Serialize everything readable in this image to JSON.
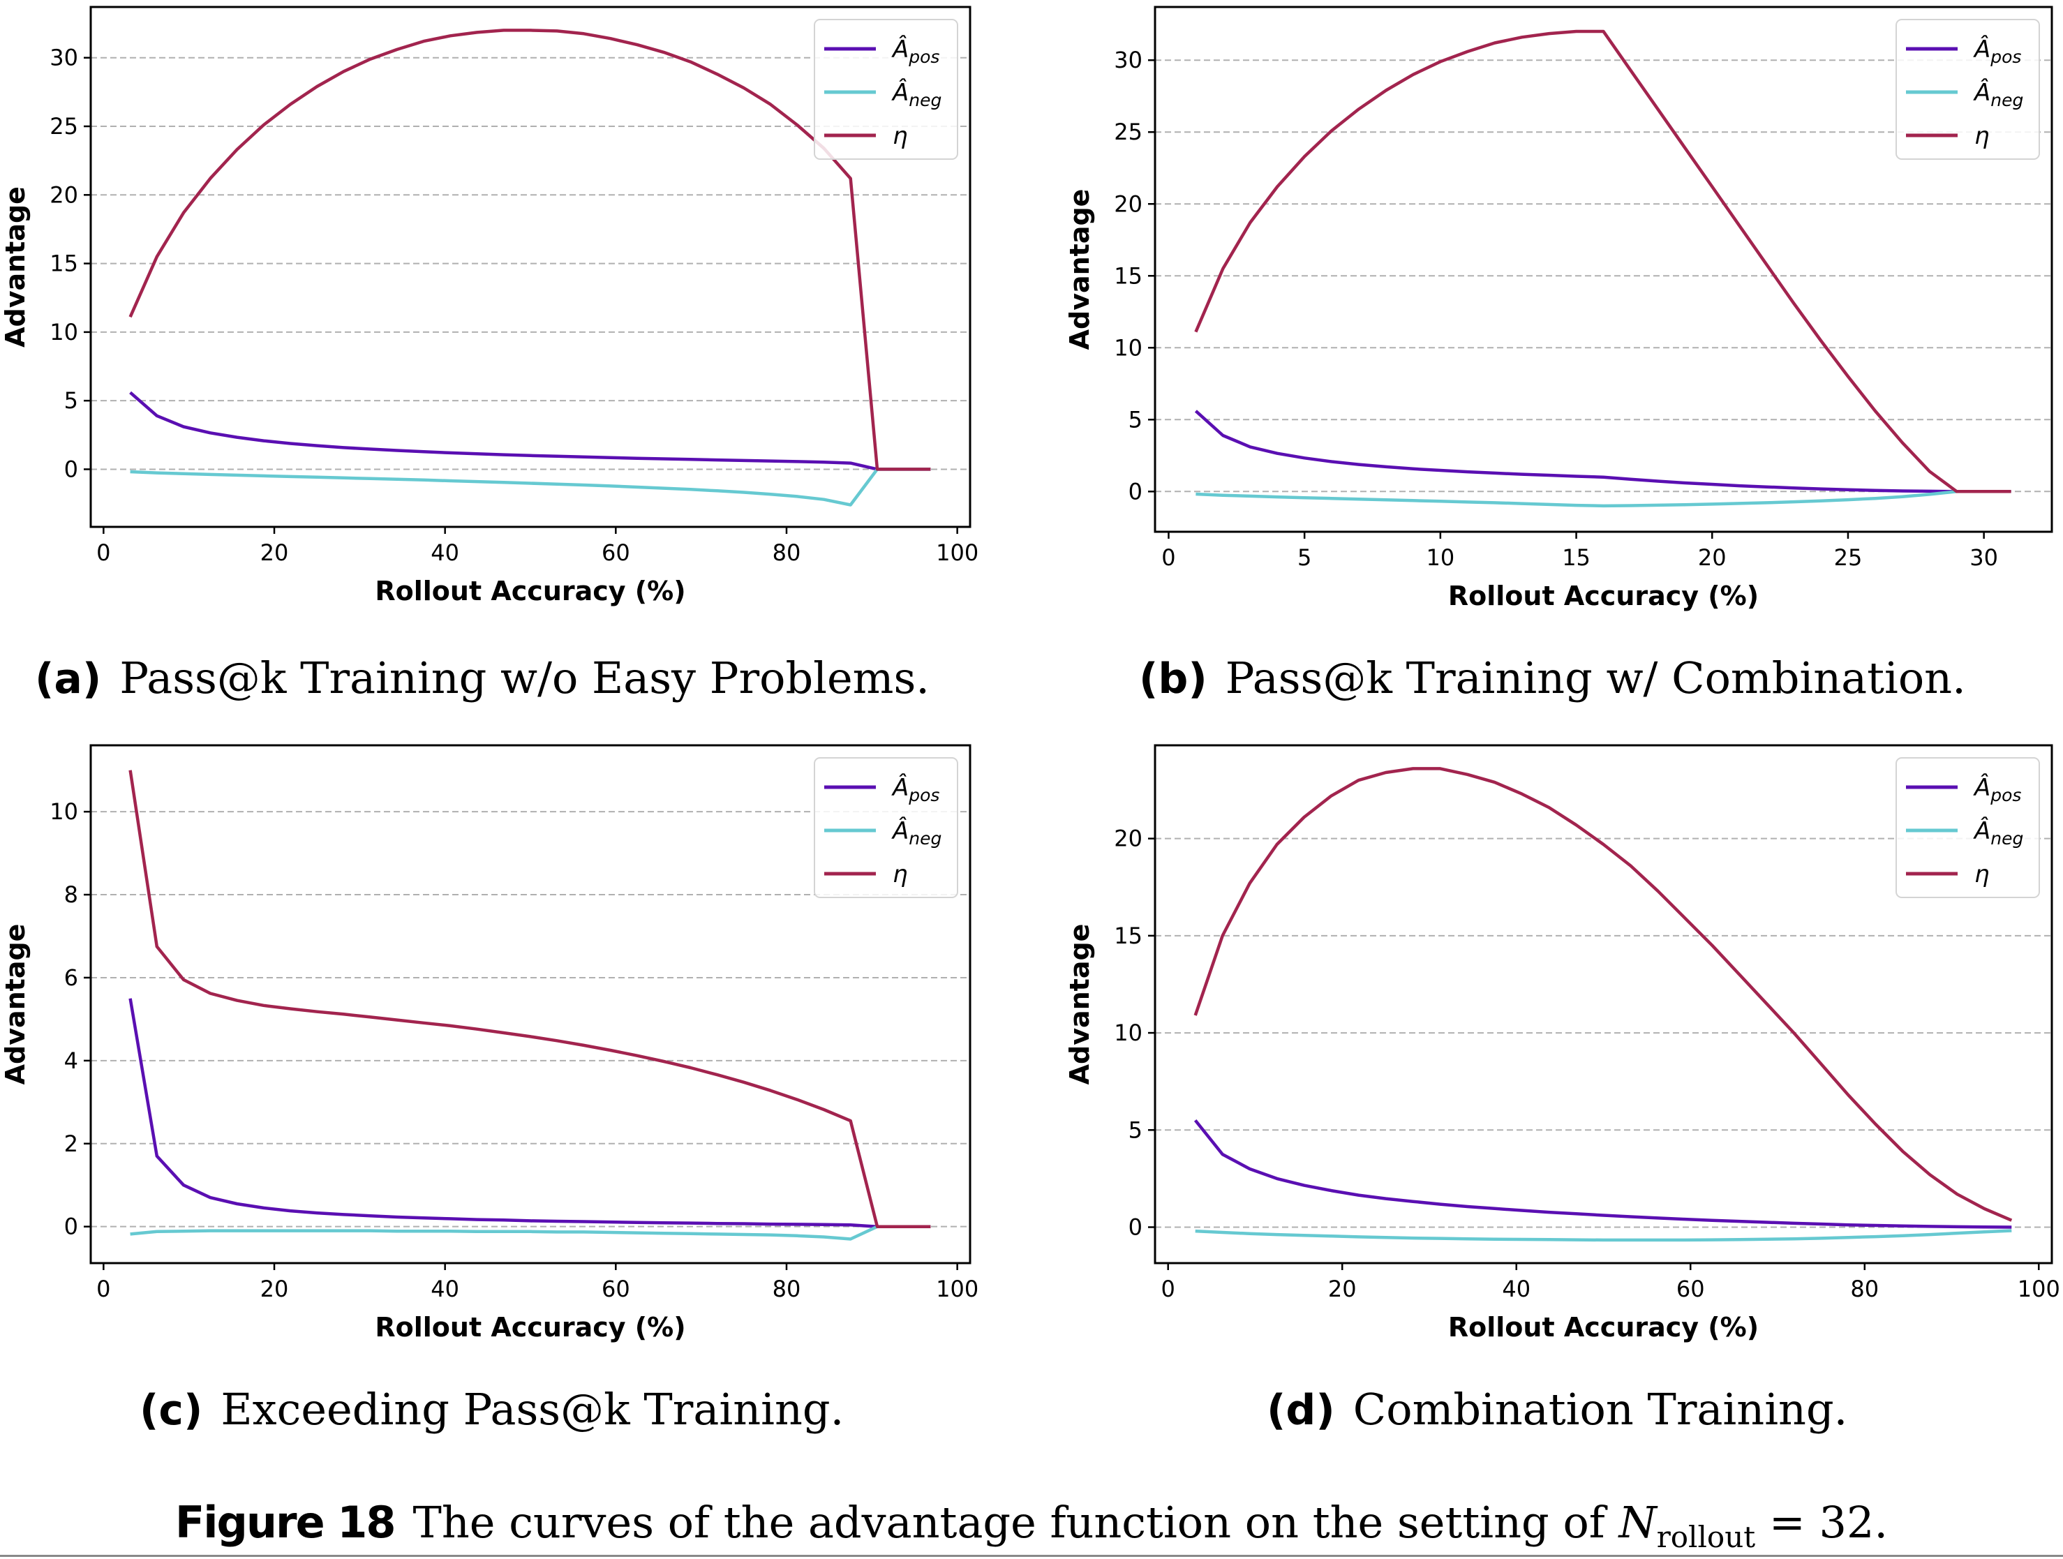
{
  "figure": {
    "label": "Figure 18",
    "caption_prefix": "The curves of the advantage function on the setting of ",
    "caption_var": "N",
    "caption_sub": "rollout",
    "caption_suffix": " = 32."
  },
  "legend": {
    "items": [
      {
        "key": "a_pos",
        "base": "Â",
        "sub": "pos"
      },
      {
        "key": "a_neg",
        "base": "Â",
        "sub": "neg"
      },
      {
        "key": "eta",
        "base": "η",
        "sub": ""
      }
    ]
  },
  "colors": {
    "a_pos": "#5a0fb2",
    "a_neg": "#66c9d1",
    "eta": "#a2244e",
    "grid": "#b0b0b0",
    "axis": "#000000"
  },
  "chart_data": [
    {
      "id": "a",
      "type": "line",
      "panel_label": "(a)",
      "title": "Pass@k Training w/o Easy Problems.",
      "xlabel": "Rollout Accuracy (%)",
      "ylabel": "Advantage",
      "xlim": [
        -1.5,
        101.5
      ],
      "ylim": [
        -4.2,
        33.7
      ],
      "xticks": [
        0,
        20,
        40,
        60,
        80,
        100
      ],
      "yticks": [
        0,
        5,
        10,
        15,
        20,
        25,
        30
      ],
      "grid": "y-dashed",
      "legend_position": "top-right",
      "x": [
        3.125,
        6.25,
        9.375,
        12.5,
        15.625,
        18.75,
        21.875,
        25,
        28.125,
        31.25,
        34.375,
        37.5,
        40.625,
        43.75,
        46.875,
        50,
        53.125,
        56.25,
        59.375,
        62.5,
        65.625,
        68.75,
        71.875,
        75,
        78.125,
        81.25,
        84.375,
        87.5,
        90.625,
        93.75,
        96.875
      ],
      "series": [
        {
          "name": "a_pos",
          "values": [
            5.6,
            3.9,
            3.1,
            2.65,
            2.33,
            2.08,
            1.88,
            1.72,
            1.58,
            1.47,
            1.37,
            1.28,
            1.2,
            1.13,
            1.06,
            1.0,
            0.95,
            0.9,
            0.85,
            0.8,
            0.76,
            0.72,
            0.68,
            0.64,
            0.6,
            0.56,
            0.52,
            0.45,
            0.0,
            0.0,
            0.0
          ]
        },
        {
          "name": "a_neg",
          "values": [
            -0.18,
            -0.26,
            -0.32,
            -0.38,
            -0.43,
            -0.48,
            -0.53,
            -0.58,
            -0.63,
            -0.68,
            -0.73,
            -0.78,
            -0.84,
            -0.9,
            -0.96,
            -1.02,
            -1.08,
            -1.15,
            -1.22,
            -1.3,
            -1.38,
            -1.47,
            -1.57,
            -1.68,
            -1.82,
            -1.98,
            -2.2,
            -2.6,
            0.0,
            0.0,
            0.0
          ]
        },
        {
          "name": "eta",
          "values": [
            11.1,
            15.5,
            18.7,
            21.2,
            23.3,
            25.1,
            26.6,
            27.9,
            29.0,
            29.9,
            30.6,
            31.2,
            31.6,
            31.85,
            32.0,
            32.0,
            31.95,
            31.75,
            31.4,
            30.95,
            30.4,
            29.7,
            28.8,
            27.8,
            26.6,
            25.1,
            23.4,
            21.2,
            0.0,
            0.0,
            0.0
          ]
        }
      ]
    },
    {
      "id": "b",
      "type": "line",
      "panel_label": "(b)",
      "title": "Pass@k Training w/ Combination.",
      "xlabel": "Rollout Accuracy (%)",
      "ylabel": "Advantage",
      "xlim": [
        -0.5,
        32.5
      ],
      "ylim": [
        -2.8,
        33.7
      ],
      "xticks": [
        0,
        5,
        10,
        15,
        20,
        25,
        30
      ],
      "yticks": [
        0,
        5,
        10,
        15,
        20,
        25,
        30
      ],
      "grid": "y-dashed",
      "legend_position": "top-right",
      "x": [
        1,
        2,
        3,
        4,
        5,
        6,
        7,
        8,
        9,
        10,
        11,
        12,
        13,
        14,
        15,
        16,
        17,
        18,
        19,
        20,
        21,
        22,
        23,
        24,
        25,
        26,
        27,
        28,
        29,
        30,
        31
      ],
      "series": [
        {
          "name": "a_pos",
          "values": [
            5.6,
            3.9,
            3.1,
            2.65,
            2.33,
            2.08,
            1.88,
            1.72,
            1.58,
            1.47,
            1.37,
            1.28,
            1.2,
            1.13,
            1.06,
            1.0,
            0.85,
            0.72,
            0.6,
            0.5,
            0.4,
            0.32,
            0.25,
            0.18,
            0.12,
            0.08,
            0.04,
            0.02,
            0.0,
            0.0,
            0.0
          ]
        },
        {
          "name": "a_neg",
          "values": [
            -0.18,
            -0.26,
            -0.32,
            -0.38,
            -0.43,
            -0.48,
            -0.53,
            -0.58,
            -0.63,
            -0.68,
            -0.73,
            -0.78,
            -0.84,
            -0.9,
            -0.96,
            -1.0,
            -0.98,
            -0.95,
            -0.92,
            -0.88,
            -0.83,
            -0.78,
            -0.72,
            -0.65,
            -0.57,
            -0.48,
            -0.36,
            -0.2,
            0.0,
            0.0,
            0.0
          ]
        },
        {
          "name": "eta",
          "values": [
            11.1,
            15.5,
            18.7,
            21.2,
            23.3,
            25.1,
            26.6,
            27.9,
            29.0,
            29.9,
            30.6,
            31.2,
            31.6,
            31.85,
            32.0,
            32.0,
            29.3,
            26.6,
            23.9,
            21.2,
            18.5,
            15.8,
            13.1,
            10.5,
            8.0,
            5.6,
            3.4,
            1.4,
            0.0,
            0.0,
            0.0
          ]
        }
      ]
    },
    {
      "id": "c",
      "type": "line",
      "panel_label": "(c)",
      "title": "Exceeding Pass@k Training.",
      "xlabel": "Rollout Accuracy (%)",
      "ylabel": "Advantage",
      "xlim": [
        -1.5,
        101.5
      ],
      "ylim": [
        -0.88,
        11.6
      ],
      "xticks": [
        0,
        20,
        40,
        60,
        80,
        100
      ],
      "yticks": [
        0,
        2,
        4,
        6,
        8,
        10
      ],
      "grid": "y-dashed",
      "legend_position": "top-right",
      "x": [
        3.125,
        6.25,
        9.375,
        12.5,
        15.625,
        18.75,
        21.875,
        25,
        28.125,
        31.25,
        34.375,
        37.5,
        40.625,
        43.75,
        46.875,
        50,
        53.125,
        56.25,
        59.375,
        62.5,
        65.625,
        68.75,
        71.875,
        75,
        78.125,
        81.25,
        84.375,
        87.5,
        90.625,
        93.75,
        96.875
      ],
      "series": [
        {
          "name": "a_pos",
          "values": [
            5.5,
            1.7,
            1.0,
            0.7,
            0.55,
            0.45,
            0.38,
            0.33,
            0.29,
            0.26,
            0.23,
            0.21,
            0.19,
            0.17,
            0.16,
            0.14,
            0.13,
            0.12,
            0.11,
            0.1,
            0.09,
            0.085,
            0.075,
            0.07,
            0.06,
            0.055,
            0.05,
            0.04,
            0.0,
            0.0,
            0.0
          ]
        },
        {
          "name": "a_neg",
          "values": [
            -0.18,
            -0.12,
            -0.11,
            -0.1,
            -0.1,
            -0.1,
            -0.1,
            -0.1,
            -0.1,
            -0.1,
            -0.11,
            -0.11,
            -0.11,
            -0.12,
            -0.12,
            -0.12,
            -0.13,
            -0.13,
            -0.14,
            -0.15,
            -0.16,
            -0.17,
            -0.18,
            -0.19,
            -0.2,
            -0.22,
            -0.25,
            -0.3,
            0.0,
            0.0,
            0.0
          ]
        },
        {
          "name": "eta",
          "values": [
            11.0,
            6.75,
            5.95,
            5.62,
            5.45,
            5.33,
            5.25,
            5.18,
            5.12,
            5.05,
            4.98,
            4.91,
            4.84,
            4.76,
            4.67,
            4.58,
            4.48,
            4.37,
            4.25,
            4.12,
            3.98,
            3.83,
            3.66,
            3.48,
            3.28,
            3.06,
            2.82,
            2.55,
            0.0,
            0.0,
            0.0
          ]
        }
      ]
    },
    {
      "id": "d",
      "type": "line",
      "panel_label": "(d)",
      "title": "Combination Training.",
      "xlabel": "Rollout Accuracy (%)",
      "ylabel": "Advantage",
      "xlim": [
        -1.5,
        101.5
      ],
      "ylim": [
        -1.85,
        24.8
      ],
      "xticks": [
        0,
        20,
        40,
        60,
        80,
        100
      ],
      "yticks": [
        0,
        5,
        10,
        15,
        20
      ],
      "grid": "y-dashed",
      "legend_position": "top-right",
      "x": [
        3.125,
        6.25,
        9.375,
        12.5,
        15.625,
        18.75,
        21.875,
        25,
        28.125,
        31.25,
        34.375,
        37.5,
        40.625,
        43.75,
        46.875,
        50,
        53.125,
        56.25,
        59.375,
        62.5,
        65.625,
        68.75,
        71.875,
        75,
        78.125,
        81.25,
        84.375,
        87.5,
        90.625,
        93.75,
        96.875
      ],
      "series": [
        {
          "name": "a_pos",
          "values": [
            5.5,
            3.75,
            3.0,
            2.5,
            2.15,
            1.88,
            1.65,
            1.47,
            1.32,
            1.18,
            1.06,
            0.96,
            0.86,
            0.77,
            0.69,
            0.61,
            0.54,
            0.47,
            0.41,
            0.35,
            0.3,
            0.25,
            0.2,
            0.16,
            0.12,
            0.09,
            0.06,
            0.04,
            0.02,
            0.01,
            0.0
          ]
        },
        {
          "name": "a_neg",
          "values": [
            -0.2,
            -0.27,
            -0.33,
            -0.38,
            -0.42,
            -0.46,
            -0.5,
            -0.53,
            -0.56,
            -0.58,
            -0.6,
            -0.62,
            -0.63,
            -0.64,
            -0.65,
            -0.66,
            -0.66,
            -0.66,
            -0.66,
            -0.65,
            -0.64,
            -0.62,
            -0.6,
            -0.57,
            -0.53,
            -0.49,
            -0.44,
            -0.38,
            -0.31,
            -0.24,
            -0.18
          ]
        },
        {
          "name": "eta",
          "values": [
            10.9,
            15.0,
            17.7,
            19.7,
            21.1,
            22.2,
            23.0,
            23.4,
            23.6,
            23.6,
            23.3,
            22.9,
            22.3,
            21.6,
            20.7,
            19.7,
            18.6,
            17.3,
            15.9,
            14.5,
            13.0,
            11.5,
            10.0,
            8.4,
            6.8,
            5.3,
            3.9,
            2.7,
            1.7,
            0.95,
            0.35
          ]
        }
      ]
    }
  ]
}
